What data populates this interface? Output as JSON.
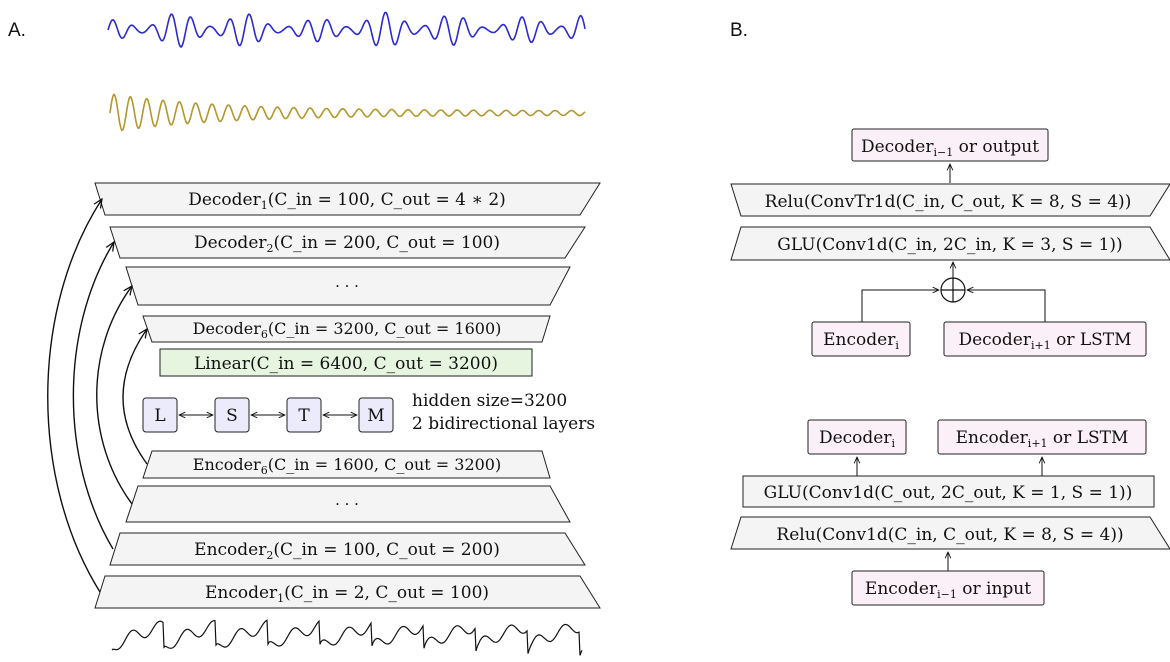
{
  "panel_a": {
    "label": "A.",
    "decoder_1": {
      "name": "Decoder",
      "sub": "1",
      "params": "(C_in = 100, C_out = 4 ∗ 2)"
    },
    "decoder_2": {
      "name": "Decoder",
      "sub": "2",
      "params": "(C_in = 200, C_out = 100)"
    },
    "decoder_dots": "· · ·",
    "decoder_6": {
      "name": "Decoder",
      "sub": "6",
      "params": "(C_in = 3200, C_out = 1600)"
    },
    "linear": {
      "name": "Linear",
      "params": "(C_in = 6400, C_out = 3200)"
    },
    "lstm_boxes": [
      "L",
      "S",
      "T",
      "M"
    ],
    "lstm_note_1": "hidden size=3200",
    "lstm_note_2": "2 bidirectional layers",
    "encoder_6": {
      "name": "Encoder",
      "sub": "6",
      "params": "(C_in = 1600, C_out = 3200)"
    },
    "encoder_dots": "· · ·",
    "encoder_2": {
      "name": "Encoder",
      "sub": "2",
      "params": "(C_in = 100, C_out = 200)"
    },
    "encoder_1": {
      "name": "Encoder",
      "sub": "1",
      "params": "(C_in = 2, C_out = 100)"
    }
  },
  "panel_b": {
    "label": "B.",
    "decoder_block": {
      "output": {
        "name": "Decoder",
        "sub": "i−1",
        "suffix": " or output"
      },
      "relu": "Relu(ConvTr1d(C_in, C_out, K = 8, S = 4))",
      "glu": "GLU(Conv1d(C_in, 2C_in, K = 3, S = 1))",
      "encoder_in": {
        "name": "Encoder",
        "sub": "i"
      },
      "decoder_in": {
        "name": "Decoder",
        "sub": "i+1",
        "suffix": " or LSTM"
      }
    },
    "encoder_block": {
      "decoder_out": {
        "name": "Decoder",
        "sub": "i"
      },
      "encoder_out": {
        "name": "Encoder",
        "sub": "i+1",
        "suffix": " or LSTM"
      },
      "glu": "GLU(Conv1d(C_out, 2C_out, K = 1, S = 1))",
      "relu": "Relu(Conv1d(C_in, C_out, K = 8, S = 4))",
      "input": {
        "name": "Encoder",
        "sub": "i−1",
        "suffix": " or input"
      }
    }
  },
  "colors": {
    "trapezoid_fill": "#f4f4f4",
    "linear_fill": "#e6f5e0",
    "lstm_fill": "#ecebfb",
    "pink_fill": "#fbf0f7",
    "wave_blue": "#2a2ad6",
    "wave_gold": "#b3972a",
    "wave_black": "#111111"
  }
}
